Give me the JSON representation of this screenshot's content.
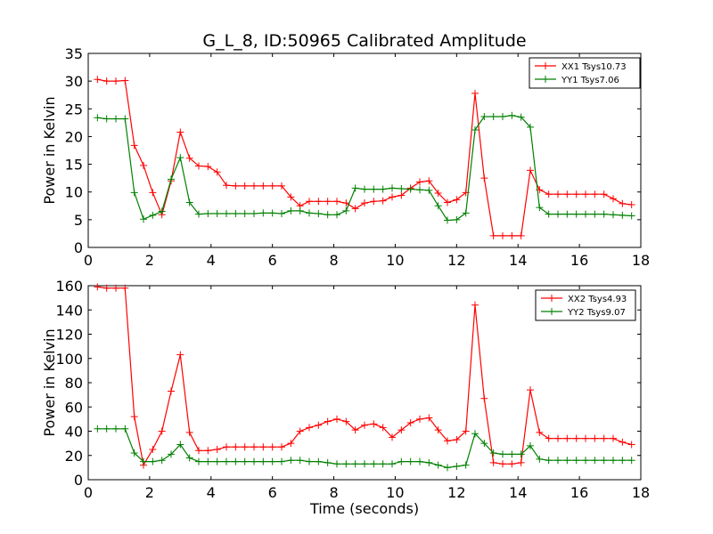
{
  "chart_data": [
    {
      "type": "line",
      "title": "G_L_8, ID:50965 Calibrated Amplitude",
      "xlabel": "",
      "ylabel": "Power in Kelvin",
      "xlim": [
        0,
        18
      ],
      "ylim": [
        0,
        35
      ],
      "xticks": [
        0,
        2,
        4,
        6,
        8,
        10,
        12,
        14,
        16,
        18
      ],
      "yticks": [
        0,
        5,
        10,
        15,
        20,
        25,
        30,
        35
      ],
      "grid": false,
      "legend": "top-right",
      "x": [
        0.3,
        0.6,
        0.9,
        1.2,
        1.5,
        1.8,
        2.1,
        2.4,
        2.7,
        3.0,
        3.3,
        3.6,
        3.9,
        4.2,
        4.5,
        4.8,
        5.1,
        5.4,
        5.7,
        6.0,
        6.3,
        6.6,
        6.9,
        7.2,
        7.5,
        7.8,
        8.1,
        8.4,
        8.7,
        9.0,
        9.3,
        9.6,
        9.9,
        10.2,
        10.5,
        10.8,
        11.1,
        11.4,
        11.7,
        12.0,
        12.3,
        12.6,
        12.9,
        13.2,
        13.5,
        13.8,
        14.1,
        14.4,
        14.7,
        15.0,
        15.3,
        15.6,
        15.9,
        16.2,
        16.5,
        16.8,
        17.1,
        17.4,
        17.7
      ],
      "series": [
        {
          "name": "XX1 Tsys10.73",
          "color": "#ff0000",
          "values": [
            30.3,
            30.0,
            30.0,
            30.1,
            18.4,
            14.8,
            9.9,
            5.9,
            12.0,
            20.8,
            16.1,
            14.7,
            14.6,
            13.6,
            11.2,
            11.1,
            11.1,
            11.1,
            11.1,
            11.1,
            11.1,
            9.1,
            7.5,
            8.3,
            8.3,
            8.3,
            8.3,
            8.0,
            7.0,
            8.0,
            8.3,
            8.4,
            9.1,
            9.4,
            10.7,
            11.8,
            12.0,
            9.8,
            8.1,
            8.6,
            9.9,
            27.8,
            12.5,
            2.1,
            2.1,
            2.1,
            2.1,
            13.9,
            10.4,
            9.6,
            9.6,
            9.6,
            9.6,
            9.6,
            9.6,
            9.6,
            8.8,
            7.9,
            7.7
          ]
        },
        {
          "name": "YY1 Tsys7.06",
          "color": "#008000",
          "values": [
            23.4,
            23.2,
            23.2,
            23.2,
            9.9,
            5.1,
            5.8,
            6.5,
            12.3,
            16.2,
            8.1,
            6.0,
            6.1,
            6.1,
            6.1,
            6.1,
            6.1,
            6.1,
            6.2,
            6.2,
            6.1,
            6.6,
            6.6,
            6.2,
            6.1,
            5.9,
            5.9,
            6.6,
            10.7,
            10.5,
            10.5,
            10.5,
            10.7,
            10.6,
            10.5,
            10.4,
            10.3,
            7.5,
            4.9,
            5.0,
            6.2,
            21.2,
            23.6,
            23.6,
            23.6,
            23.8,
            23.5,
            21.7,
            7.2,
            6.0,
            6.0,
            6.0,
            6.0,
            6.0,
            6.0,
            6.0,
            5.9,
            5.8,
            5.7
          ]
        }
      ]
    },
    {
      "type": "line",
      "title": "",
      "xlabel": "Time (seconds)",
      "ylabel": "Power in Kelvin",
      "xlim": [
        0,
        18
      ],
      "ylim": [
        0,
        160
      ],
      "xticks": [
        0,
        2,
        4,
        6,
        8,
        10,
        12,
        14,
        16,
        18
      ],
      "yticks": [
        0,
        20,
        40,
        60,
        80,
        100,
        120,
        140,
        160
      ],
      "grid": false,
      "legend": "top-right",
      "x": [
        0.3,
        0.6,
        0.9,
        1.2,
        1.5,
        1.8,
        2.1,
        2.4,
        2.7,
        3.0,
        3.3,
        3.6,
        3.9,
        4.2,
        4.5,
        4.8,
        5.1,
        5.4,
        5.7,
        6.0,
        6.3,
        6.6,
        6.9,
        7.2,
        7.5,
        7.8,
        8.1,
        8.4,
        8.7,
        9.0,
        9.3,
        9.6,
        9.9,
        10.2,
        10.5,
        10.8,
        11.1,
        11.4,
        11.7,
        12.0,
        12.3,
        12.6,
        12.9,
        13.2,
        13.5,
        13.8,
        14.1,
        14.4,
        14.7,
        15.0,
        15.3,
        15.6,
        15.9,
        16.2,
        16.5,
        16.8,
        17.1,
        17.4,
        17.7
      ],
      "series": [
        {
          "name": "XX2 Tsys4.93",
          "color": "#ff0000",
          "values": [
            159,
            158,
            158,
            158,
            52,
            12,
            25,
            40,
            73,
            103,
            39,
            24,
            24,
            25,
            27,
            27,
            27,
            27,
            27,
            27,
            27,
            30,
            40,
            43,
            45,
            48,
            50,
            48,
            41,
            45,
            46,
            43,
            35,
            41,
            47,
            50,
            51,
            41,
            32,
            33,
            40,
            144,
            67,
            14,
            13,
            13,
            14,
            74,
            39,
            34,
            34,
            34,
            34,
            34,
            34,
            34,
            34,
            31,
            29
          ]
        },
        {
          "name": "YY2 Tsys9.07",
          "color": "#008000",
          "values": [
            42,
            42,
            42,
            42,
            22,
            15,
            15,
            16,
            21,
            29,
            18,
            15,
            15,
            15,
            15,
            15,
            15,
            15,
            15,
            15,
            15,
            16,
            16,
            15,
            15,
            14,
            13,
            13,
            13,
            13,
            13,
            13,
            13,
            15,
            15,
            15,
            14,
            12,
            10,
            11,
            12,
            38,
            30,
            22,
            21,
            21,
            21,
            28,
            17,
            16,
            16,
            16,
            16,
            16,
            16,
            16,
            16,
            16,
            16
          ]
        }
      ]
    }
  ]
}
